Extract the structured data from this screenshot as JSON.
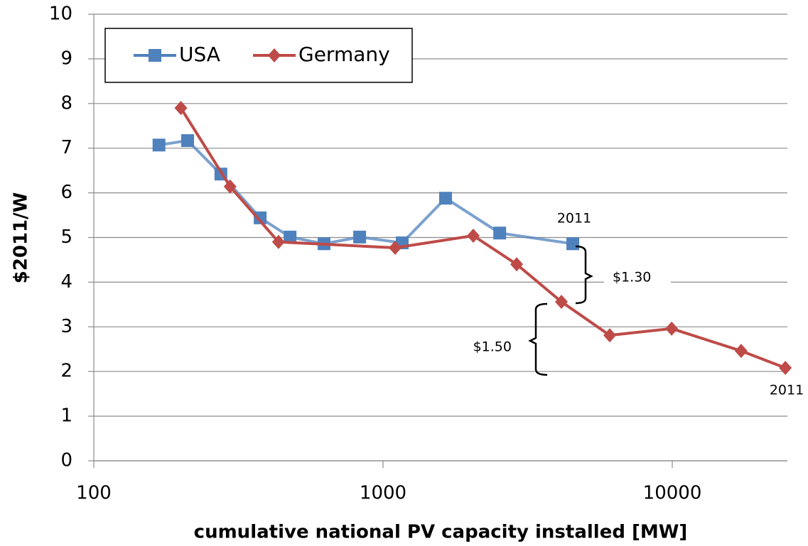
{
  "chart_data": {
    "type": "line",
    "xlabel": "cumulative national PV capacity installed [MW]",
    "ylabel": "$2011/W",
    "xscale": "log",
    "xlim": [
      100,
      25000
    ],
    "xticks": [
      100,
      1000,
      10000
    ],
    "ylim": [
      0,
      10
    ],
    "yticks": [
      0,
      1,
      2,
      3,
      4,
      5,
      6,
      7,
      8,
      9,
      10
    ],
    "grid": true,
    "legend": "upper left",
    "series": [
      {
        "name": "USA",
        "color": "#4f81bd",
        "marker": "square",
        "x": [
          168,
          211,
          275,
          376,
          477,
          625,
          830,
          1165,
          1645,
          2531,
          4530
        ],
        "values": [
          7.07,
          7.17,
          6.42,
          5.44,
          5.01,
          4.86,
          5.01,
          4.88,
          5.88,
          5.1,
          4.86
        ]
      },
      {
        "name": "Germany",
        "color": "#be4b48",
        "marker": "diamond",
        "x": [
          200,
          296,
          435,
          1101,
          2051,
          2897,
          4137,
          6078,
          9950,
          17300,
          24600
        ],
        "values": [
          7.9,
          6.14,
          4.9,
          4.77,
          5.04,
          4.4,
          3.56,
          2.81,
          2.96,
          2.46,
          2.08
        ]
      }
    ],
    "annotations": [
      "2011",
      "$1.30",
      "$1.50",
      "2011"
    ]
  }
}
